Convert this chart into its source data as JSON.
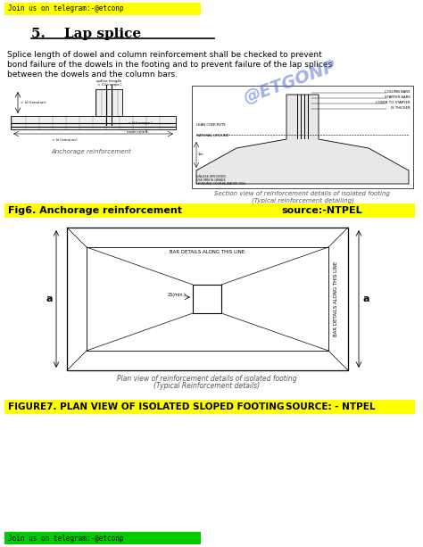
{
  "header_text": "Join us on telegram:-@etconp",
  "header_bg": "#ffff00",
  "title": "5.    Lap splice",
  "body_line1": "Splice length of dowel and column reinforcement shall be checked to prevent",
  "body_line2": "bond failure of the dowels in the footing and to prevent failure of the lap splices",
  "body_line3": "between the dowels and the column bars.",
  "fig6_label_left": "Fig6. Anchorage reinforcement",
  "fig6_label_right": "source:-NTPEL",
  "fig6_bg": "#ffff00",
  "fig_caption_left1": "Anchorage reinforcement",
  "fig_caption_right1": "Section view of reinforcement details of isolated footing",
  "fig_caption_right2": "(Typical reinforcement detailing)",
  "plan_caption1": "Plan view of reinforcement details of isolated footing",
  "plan_caption2": "(Typical Reinforcement details)",
  "figure7_label": "FIGURE7. PLAN VIEW OF ISOLATED SLOPED FOOTING",
  "figure7_source": "SOURCE: - NTPEL",
  "figure7_bg": "#ffff00",
  "footer_text": "Join us on telegram:-@etconp",
  "footer_bg": "#00cc00",
  "bg_color": "#ffffff",
  "watermark_text": "@ETGONP",
  "watermark_color": "#4466cc",
  "bar_details_top": "BAR DETAILS ALONG THIS LINE",
  "bar_details_side": "BAR DETAILS ALONG THIS LINE",
  "dim_label": "25(min.)"
}
